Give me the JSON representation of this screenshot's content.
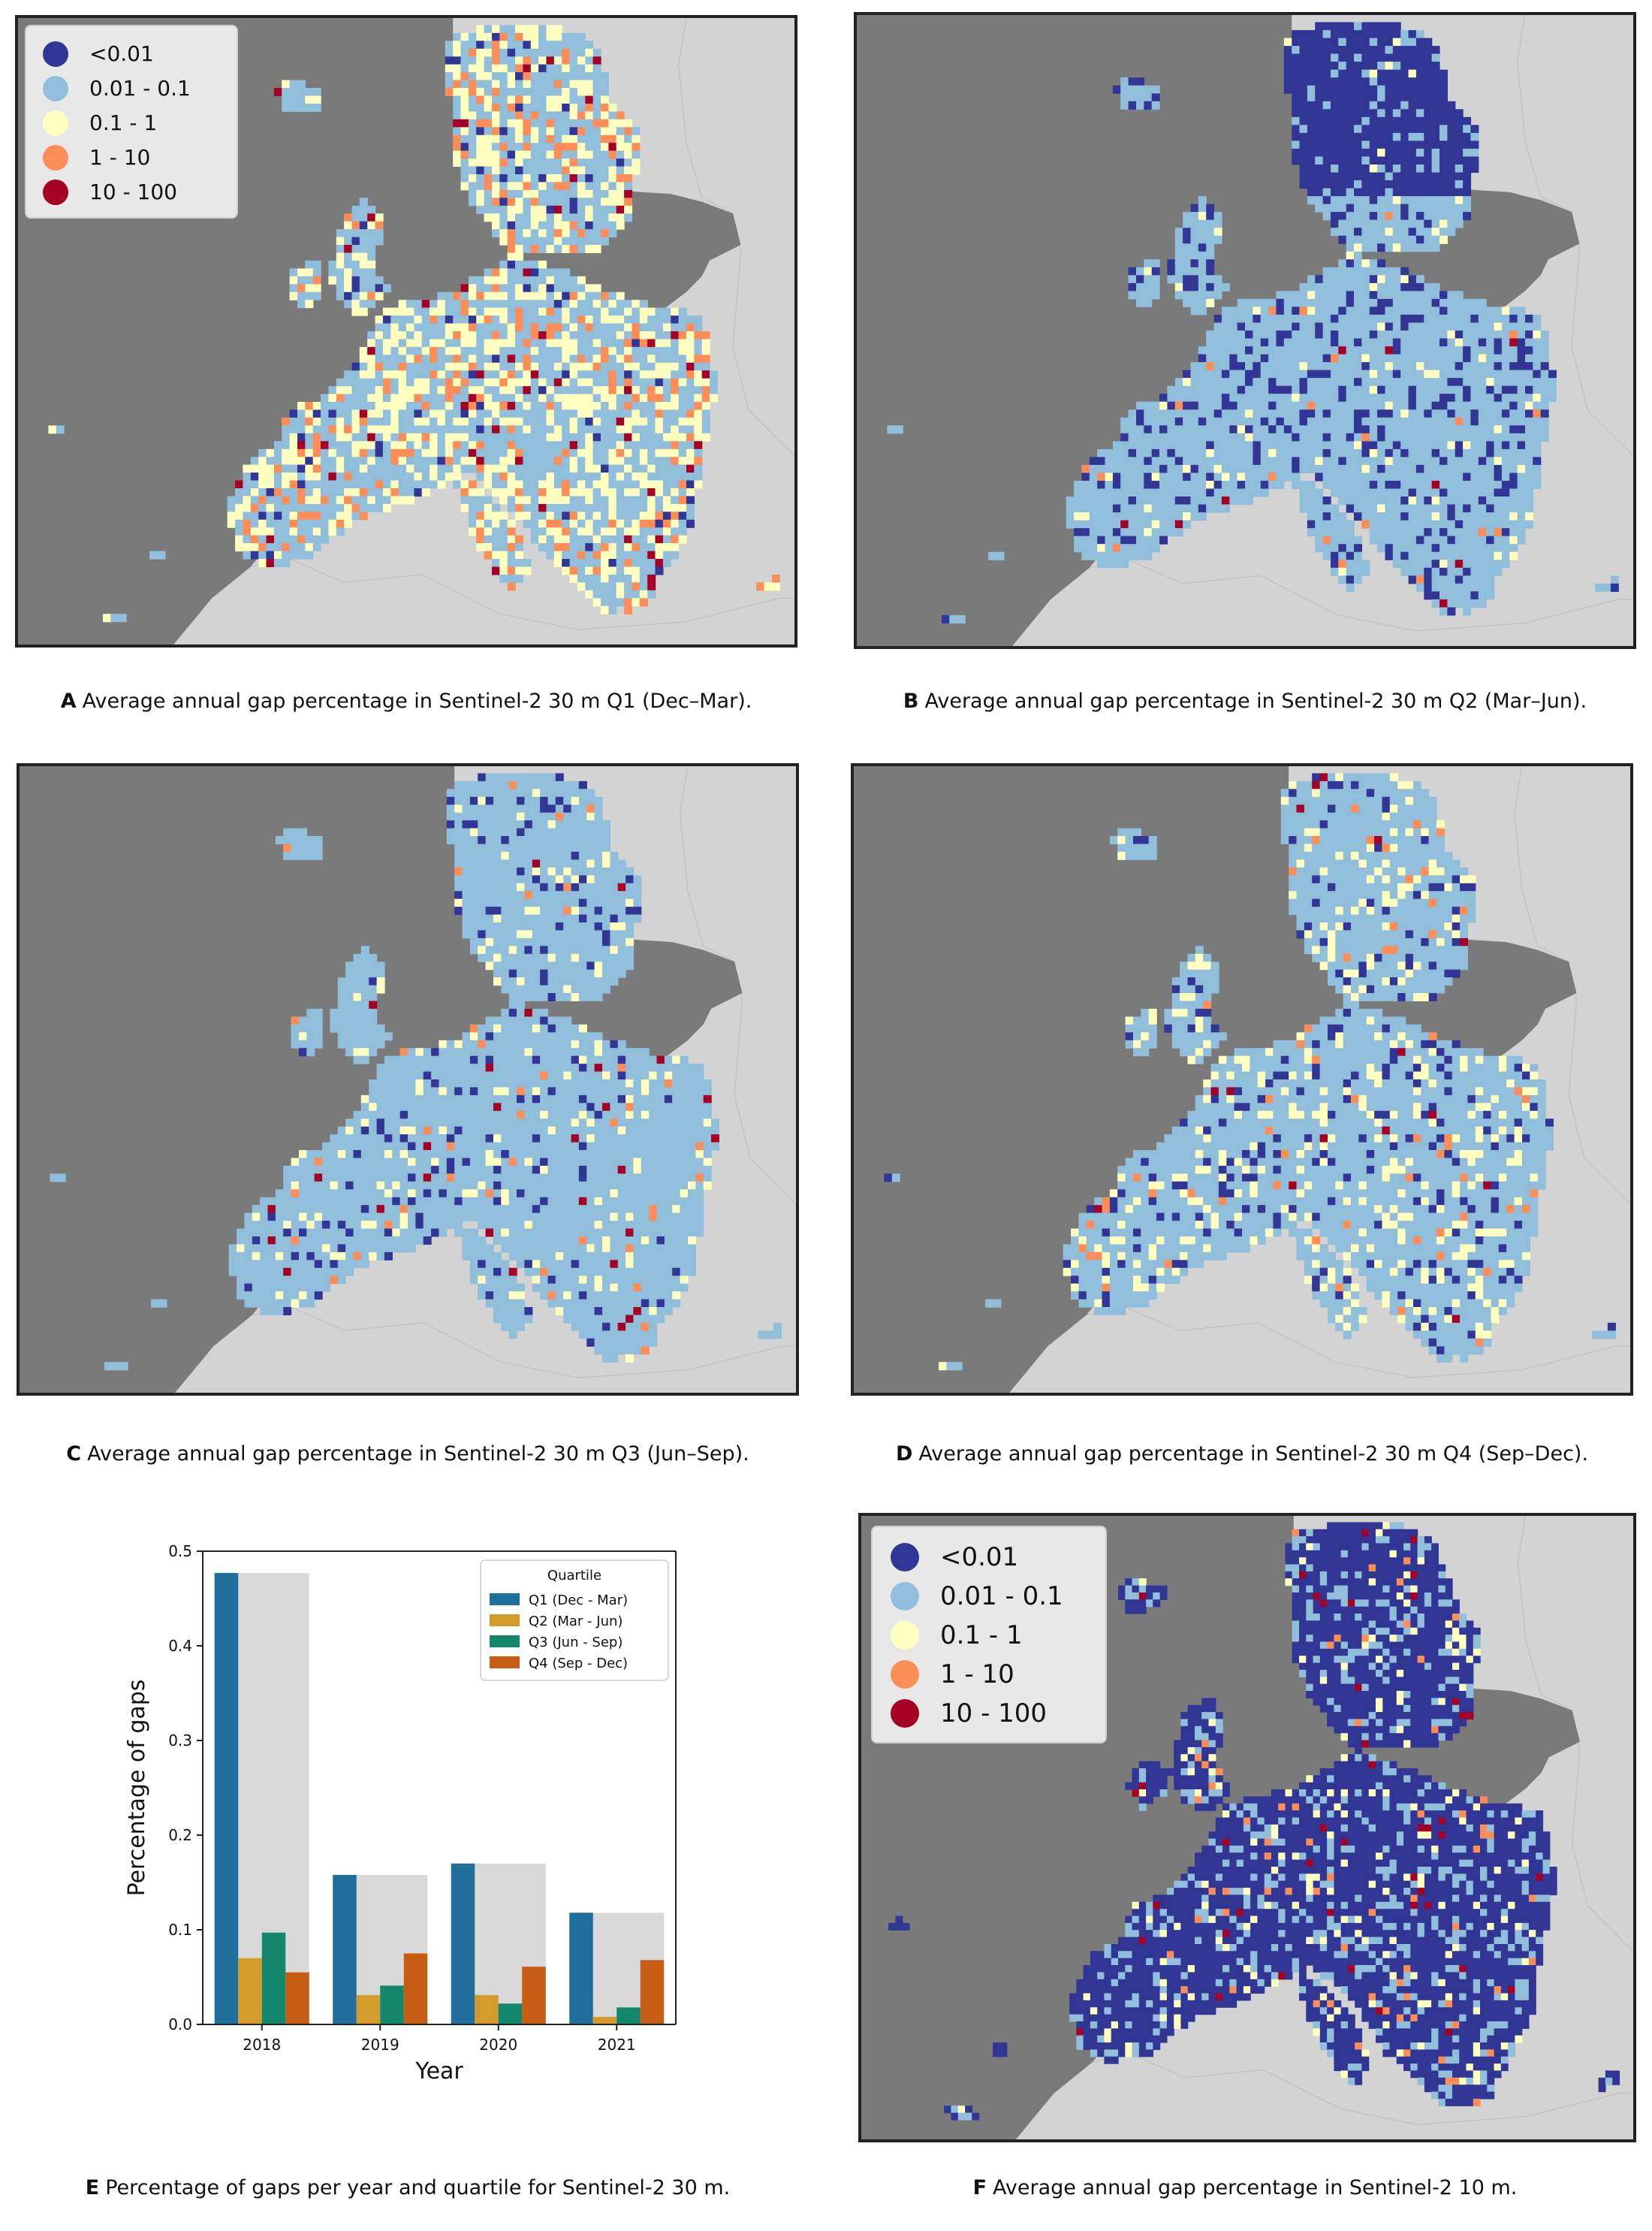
{
  "colors": {
    "sea": "#7a7a7a",
    "outside_land": "#d3d3d3",
    "class_colors": [
      "#313695",
      "#91bfdb",
      "#ffffbf",
      "#fc8d59",
      "#a50026"
    ],
    "bar_background": "#d9d9d9",
    "quartile_colors": [
      "#1f6e9c",
      "#d39a2c",
      "#12876b",
      "#c65d14"
    ]
  },
  "map_legend": {
    "items": [
      "<0.01",
      "0.01 - 0.1",
      "0.1 - 1",
      "1 - 10",
      "10 - 100"
    ]
  },
  "panels": {
    "A": {
      "letter": "A",
      "caption": "Average annual gap percentage in Sentinel-2 30 m Q1 (Dec–Mar)."
    },
    "B": {
      "letter": "B",
      "caption": "Average annual gap percentage in Sentinel-2 30 m Q2 (Mar–Jun)."
    },
    "C": {
      "letter": "C",
      "caption": "Average annual gap percentage in Sentinel-2 30 m Q3 (Jun–Sep)."
    },
    "D": {
      "letter": "D",
      "caption": "Average annual gap percentage in Sentinel-2 30 m Q4 (Sep–Dec)."
    },
    "E": {
      "letter": "E",
      "caption": "Percentage of gaps per year and quartile for Sentinel-2 30 m."
    },
    "F": {
      "letter": "F",
      "caption": "Average annual gap percentage in Sentinel-2 10 m."
    }
  },
  "chart_data": {
    "type": "bar",
    "categories": [
      "2018",
      "2019",
      "2020",
      "2021"
    ],
    "series": [
      {
        "name": "Q1 (Dec - Mar)",
        "values": [
          0.477,
          0.158,
          0.17,
          0.118
        ]
      },
      {
        "name": "Q2 (Mar - Jun)",
        "values": [
          0.07,
          0.031,
          0.031,
          0.008
        ]
      },
      {
        "name": "Q3 (Jun - Sep)",
        "values": [
          0.097,
          0.041,
          0.022,
          0.018
        ]
      },
      {
        "name": "Q4 (Sep - Dec)",
        "values": [
          0.055,
          0.075,
          0.061,
          0.068
        ]
      }
    ],
    "totals_background": [
      0.477,
      0.158,
      0.17,
      0.118
    ],
    "xlabel": "Year",
    "ylabel": "Percentage of gaps",
    "ylim": [
      0,
      0.5
    ],
    "yticks": [
      "0.0",
      "0.1",
      "0.2",
      "0.3",
      "0.4",
      "0.5"
    ],
    "legend_title": "Quartile",
    "legend_position": "top-right",
    "grid": false
  }
}
